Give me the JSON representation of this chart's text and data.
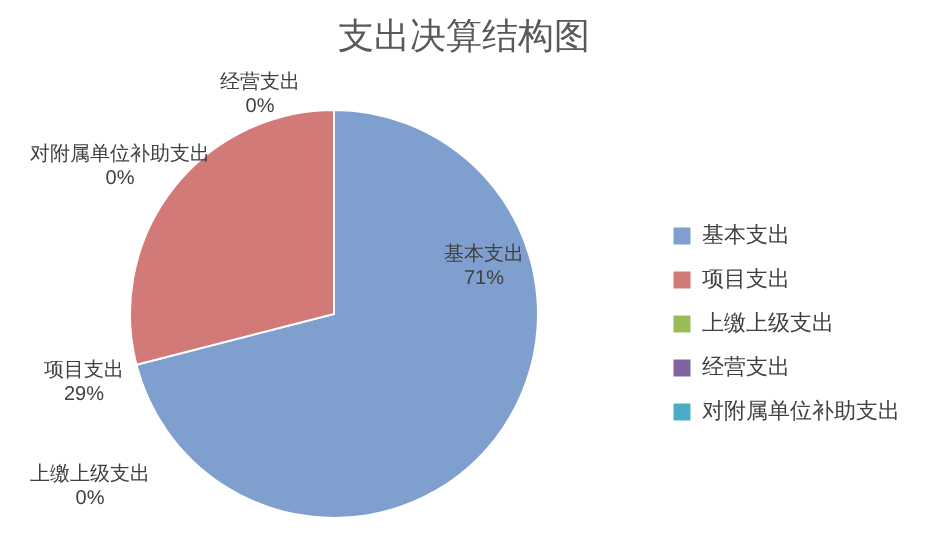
{
  "chart_data": {
    "type": "pie",
    "title": "支出决算结构图",
    "categories": [
      "基本支出",
      "项目支出",
      "上缴上级支出",
      "经营支出",
      "对附属单位补助支出"
    ],
    "values": [
      71,
      29,
      0,
      0,
      0
    ],
    "value_labels": [
      "71%",
      "29%",
      "0%",
      "0%",
      "0%"
    ],
    "colors": [
      "#7f9fcf",
      "#d27a78",
      "#9bbb59",
      "#8064a2",
      "#4bacc6"
    ],
    "legend": "right"
  }
}
